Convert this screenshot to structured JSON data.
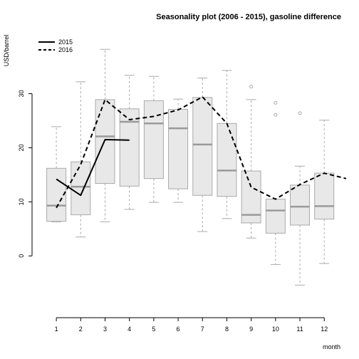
{
  "chart_data": {
    "type": "boxplot",
    "title": "Seasonality plot (2006 - 2015), gasoline difference",
    "xlabel": "month",
    "ylabel": "USD/barrel",
    "xlim": [
      0.5,
      12.9
    ],
    "ylim": [
      -8,
      41
    ],
    "x_ticks": [
      1,
      2,
      3,
      4,
      5,
      6,
      7,
      8,
      9,
      10,
      11,
      12
    ],
    "y_ticks": [
      0,
      10,
      20,
      30
    ],
    "grid": false,
    "legend_position": "top-left",
    "box_fill": "#e8e8e8",
    "box_border": "#aaaaaa",
    "median_color": "#9a9a9a",
    "boxes": [
      {
        "month": 1,
        "whisker_low": 6.3,
        "q1": 6.4,
        "median": 9.3,
        "q3": 16.2,
        "whisker_high": 23.9,
        "outliers": []
      },
      {
        "month": 2,
        "whisker_low": 3.5,
        "q1": 7.6,
        "median": 12.8,
        "q3": 17.4,
        "whisker_high": 32.2,
        "outliers": []
      },
      {
        "month": 3,
        "whisker_low": 6.3,
        "q1": 13.4,
        "median": 22.1,
        "q3": 28.9,
        "whisker_high": 38.2,
        "outliers": []
      },
      {
        "month": 4,
        "whisker_low": 8.6,
        "q1": 12.9,
        "median": 24.8,
        "q3": 27.2,
        "whisker_high": 33.4,
        "outliers": []
      },
      {
        "month": 5,
        "whisker_low": 9.9,
        "q1": 14.3,
        "median": 24.5,
        "q3": 28.7,
        "whisker_high": 33.2,
        "outliers": []
      },
      {
        "month": 6,
        "whisker_low": 9.9,
        "q1": 12.4,
        "median": 23.6,
        "q3": 27.1,
        "whisker_high": 29.0,
        "outliers": []
      },
      {
        "month": 7,
        "whisker_low": 4.5,
        "q1": 11.2,
        "median": 20.6,
        "q3": 29.3,
        "whisker_high": 32.9,
        "outliers": []
      },
      {
        "month": 8,
        "whisker_low": 6.9,
        "q1": 11.0,
        "median": 15.8,
        "q3": 24.5,
        "whisker_high": 34.3,
        "outliers": []
      },
      {
        "month": 9,
        "whisker_low": 3.3,
        "q1": 6.1,
        "median": 7.6,
        "q3": 15.7,
        "whisker_high": 28.9,
        "outliers": [
          31.3
        ]
      },
      {
        "month": 10,
        "whisker_low": -1.6,
        "q1": 4.2,
        "median": 8.4,
        "q3": 10.5,
        "whisker_high": 10.5,
        "outliers": [
          26.1,
          28.3
        ]
      },
      {
        "month": 11,
        "whisker_low": -5.4,
        "q1": 5.7,
        "median": 9.1,
        "q3": 13.1,
        "whisker_high": 16.6,
        "outliers": [
          26.4
        ]
      },
      {
        "month": 12,
        "whisker_low": -1.4,
        "q1": 6.8,
        "median": 9.2,
        "q3": 15.3,
        "whisker_high": 25.1,
        "outliers": []
      }
    ],
    "series": [
      {
        "name": "2015",
        "style": "solid",
        "color": "#000000",
        "points": [
          [
            1,
            14.2
          ],
          [
            2,
            11.2
          ],
          [
            3,
            21.5
          ],
          [
            4,
            21.4
          ]
        ]
      },
      {
        "name": "2016",
        "style": "dashed",
        "color": "#000000",
        "points": [
          [
            1,
            8.9
          ],
          [
            2,
            16.9
          ],
          [
            3,
            28.9
          ],
          [
            4,
            25.2
          ],
          [
            5,
            25.8
          ],
          [
            6,
            27.0
          ],
          [
            7,
            29.4
          ],
          [
            8,
            24.5
          ],
          [
            9,
            12.7
          ],
          [
            10,
            10.5
          ],
          [
            11,
            13.2
          ],
          [
            12,
            15.3
          ],
          [
            12.9,
            14.3
          ]
        ]
      }
    ]
  }
}
